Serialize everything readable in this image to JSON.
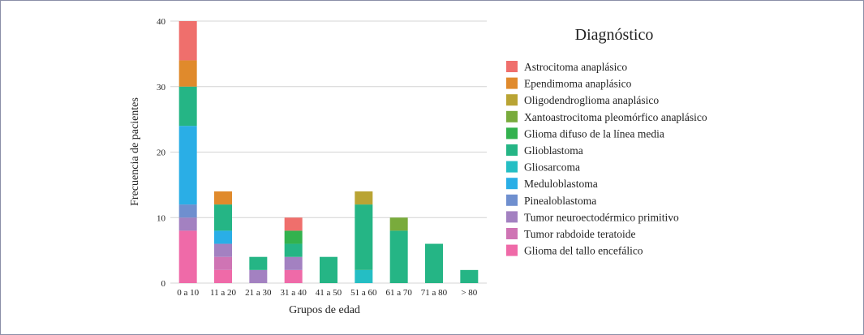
{
  "chart_data": {
    "type": "bar",
    "stacked": true,
    "xlabel": "Grupos de edad",
    "ylabel": "Frecuencia de pacientes",
    "ylim": [
      0,
      40
    ],
    "yticks": [
      "0",
      "10",
      "20",
      "30",
      "40"
    ],
    "grid": "horizontal",
    "legend_title": "Diagnóstico",
    "legend_position": "right",
    "categories": [
      "0 a 10",
      "11 a 20",
      "21 a 30",
      "31 a 40",
      "41 a 50",
      "51 a 60",
      "61 a 70",
      "71 a 80",
      "> 80"
    ],
    "series": [
      {
        "name": "Astrocitoma anaplásico",
        "color": "#ef6f6c",
        "values": [
          6,
          0,
          0,
          2,
          0,
          0,
          0,
          0,
          0
        ]
      },
      {
        "name": "Ependimoma anaplásico",
        "color": "#e08a2c",
        "values": [
          4,
          2,
          0,
          0,
          0,
          0,
          0,
          0,
          0
        ]
      },
      {
        "name": "Oligodendroglioma anaplásico",
        "color": "#b9a434",
        "values": [
          0,
          0,
          0,
          0,
          0,
          2,
          0,
          0,
          0
        ]
      },
      {
        "name": "Xantoastrocitoma pleomórfico anaplásico",
        "color": "#79ab3c",
        "values": [
          0,
          0,
          0,
          0,
          0,
          0,
          2,
          0,
          0
        ]
      },
      {
        "name": "Glioma difuso de la línea media",
        "color": "#33b24e",
        "values": [
          0,
          0,
          0,
          2,
          0,
          0,
          0,
          0,
          0
        ]
      },
      {
        "name": "Glioblastoma",
        "color": "#25b585",
        "values": [
          6,
          4,
          2,
          2,
          4,
          10,
          8,
          6,
          2
        ]
      },
      {
        "name": "Gliosarcoma",
        "color": "#24bec4",
        "values": [
          0,
          0,
          0,
          0,
          0,
          2,
          0,
          0,
          0
        ]
      },
      {
        "name": "Meduloblastoma",
        "color": "#2aaee6",
        "values": [
          12,
          2,
          0,
          0,
          0,
          0,
          0,
          0,
          0
        ]
      },
      {
        "name": "Pinealoblastoma",
        "color": "#6f8fcf",
        "values": [
          2,
          0,
          0,
          0,
          0,
          0,
          0,
          0,
          0
        ]
      },
      {
        "name": "Tumor neuroectodérmico primitivo",
        "color": "#a381c1",
        "values": [
          2,
          2,
          2,
          2,
          0,
          0,
          0,
          0,
          0
        ]
      },
      {
        "name": "Tumor rabdoide teratoide",
        "color": "#cf74b4",
        "values": [
          0,
          2,
          0,
          0,
          0,
          0,
          0,
          0,
          0
        ]
      },
      {
        "name": "Glioma del tallo encefálico",
        "color": "#ef6aa8",
        "values": [
          8,
          2,
          0,
          2,
          0,
          0,
          0,
          0,
          0
        ]
      }
    ]
  }
}
